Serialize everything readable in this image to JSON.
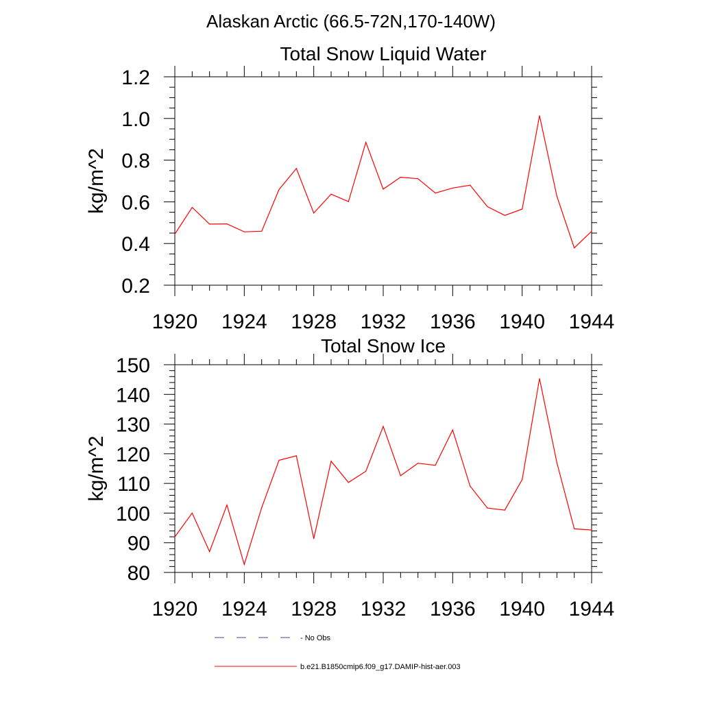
{
  "figure": {
    "title": "Alaskan Arctic (66.5-72N,170-140W)"
  },
  "chart_data": [
    {
      "type": "line",
      "title": "Total Snow Liquid Water",
      "xlabel": "",
      "ylabel": "kg/m^2",
      "xlim": [
        1920,
        1944
      ],
      "ylim": [
        0.2,
        1.2
      ],
      "x_ticks": [
        "1920",
        "1924",
        "1928",
        "1932",
        "1936",
        "1940",
        "1944"
      ],
      "y_ticks": [
        "0.2",
        "0.4",
        "0.6",
        "0.8",
        "1.0",
        "1.2"
      ],
      "series": [
        {
          "name": "b.e21.B1850cmip6.f09_g17.DAMIP-hist-aer.003",
          "color": "#ff0000",
          "x": [
            1920,
            1921,
            1922,
            1923,
            1924,
            1925,
            1926,
            1927,
            1928,
            1929,
            1930,
            1931,
            1932,
            1933,
            1934,
            1935,
            1936,
            1937,
            1938,
            1939,
            1940,
            1941,
            1942,
            1943,
            1944
          ],
          "y": [
            0.445,
            0.573,
            0.493,
            0.494,
            0.456,
            0.459,
            0.659,
            0.76,
            0.546,
            0.637,
            0.601,
            0.886,
            0.661,
            0.718,
            0.711,
            0.642,
            0.666,
            0.68,
            0.577,
            0.535,
            0.565,
            1.013,
            0.627,
            0.379,
            0.459
          ]
        }
      ]
    },
    {
      "type": "line",
      "title": "Total Snow Ice",
      "xlabel": "",
      "ylabel": "kg/m^2",
      "xlim": [
        1920,
        1944
      ],
      "ylim": [
        80,
        150
      ],
      "x_ticks": [
        "1920",
        "1924",
        "1928",
        "1932",
        "1936",
        "1940",
        "1944"
      ],
      "y_ticks": [
        "80",
        "90",
        "100",
        "110",
        "120",
        "130",
        "140",
        "150"
      ],
      "series": [
        {
          "name": "b.e21.B1850cmip6.f09_g17.DAMIP-hist-aer.003",
          "color": "#ff0000",
          "x": [
            1920,
            1921,
            1922,
            1923,
            1924,
            1925,
            1926,
            1927,
            1928,
            1929,
            1930,
            1931,
            1932,
            1933,
            1934,
            1935,
            1936,
            1937,
            1938,
            1939,
            1940,
            1941,
            1942,
            1943,
            1944
          ],
          "y": [
            92.0,
            100.0,
            87.0,
            102.7,
            82.7,
            101.8,
            117.8,
            119.3,
            91.4,
            117.5,
            110.3,
            114.1,
            129.2,
            112.6,
            116.8,
            116.1,
            128.0,
            109.1,
            101.7,
            101.0,
            111.3,
            145.3,
            117.0,
            94.7,
            94.3
          ]
        }
      ]
    }
  ],
  "legend": {
    "entries": [
      {
        "label": "No Obs",
        "color": "#4a4a8a",
        "style": "dashed"
      },
      {
        "label": "b.e21.B1850cmip6.f09_g17.DAMIP-hist-aer.003",
        "color": "#ff0000",
        "style": "solid"
      }
    ]
  }
}
